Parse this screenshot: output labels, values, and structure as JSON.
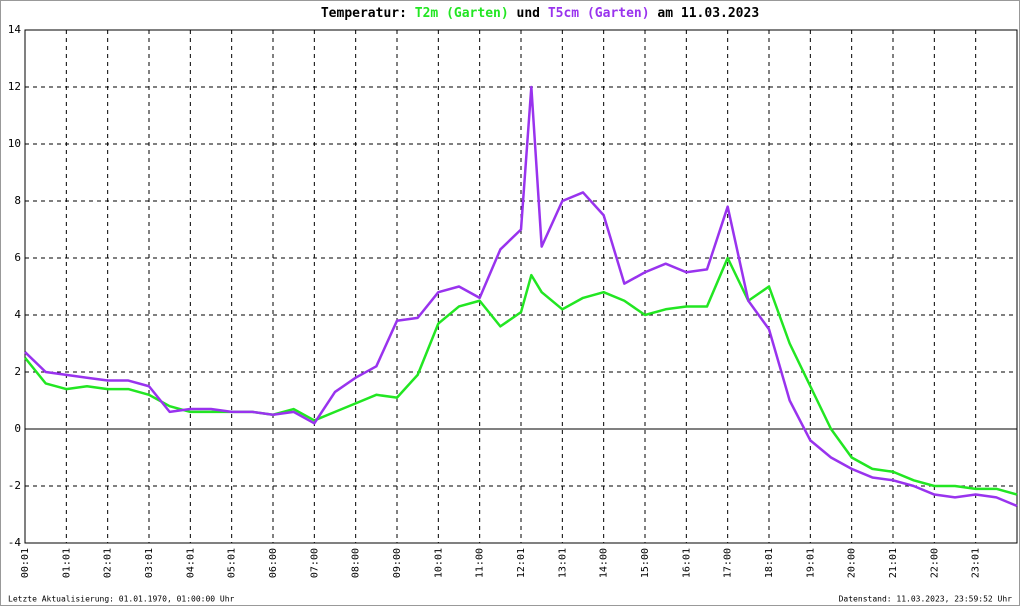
{
  "chart_data": {
    "type": "line",
    "title": {
      "prefix": "Temperatur:",
      "joiner": "und",
      "suffix": "am 11.03.2023"
    },
    "x": [
      0,
      0.5,
      1,
      1.5,
      2,
      2.5,
      3,
      3.5,
      4,
      4.5,
      5,
      5.5,
      6,
      6.5,
      7,
      7.5,
      8,
      8.5,
      9,
      9.5,
      10,
      10.5,
      11,
      11.5,
      12,
      12.25,
      12.5,
      13,
      13.5,
      14,
      14.5,
      15,
      15.5,
      16,
      16.5,
      17,
      17.5,
      18,
      18.5,
      19,
      19.5,
      20,
      20.5,
      21,
      21.5,
      22,
      22.5,
      23,
      23.5,
      24
    ],
    "series": [
      {
        "name": "T2m (Garten)",
        "color": "#22e622",
        "values": [
          2.5,
          1.6,
          1.4,
          1.5,
          1.4,
          1.4,
          1.2,
          0.8,
          0.6,
          0.6,
          0.6,
          0.6,
          0.5,
          0.7,
          0.3,
          0.6,
          0.9,
          1.2,
          1.1,
          1.9,
          3.7,
          4.3,
          4.5,
          3.6,
          4.1,
          5.4,
          4.8,
          4.2,
          4.6,
          4.8,
          4.5,
          4.0,
          4.2,
          4.3,
          4.3,
          6.0,
          4.5,
          5.0,
          3.0,
          1.5,
          0.0,
          -1.0,
          -1.4,
          -1.5,
          -1.8,
          -2.0,
          -2.0,
          -2.1,
          -2.1,
          -2.3
        ]
      },
      {
        "name": "T5cm (Garten)",
        "color": "#9933ee",
        "values": [
          2.7,
          2.0,
          1.9,
          1.8,
          1.7,
          1.7,
          1.5,
          0.6,
          0.7,
          0.7,
          0.6,
          0.6,
          0.5,
          0.6,
          0.2,
          1.3,
          1.8,
          2.2,
          3.8,
          3.9,
          4.8,
          5.0,
          4.6,
          6.3,
          7.0,
          12.0,
          6.4,
          8.0,
          8.3,
          7.5,
          5.1,
          5.5,
          5.8,
          5.5,
          5.6,
          7.8,
          4.5,
          3.5,
          1.0,
          -0.4,
          -1.0,
          -1.4,
          -1.7,
          -1.8,
          -2.0,
          -2.3,
          -2.4,
          -2.3,
          -2.4,
          -2.7
        ]
      }
    ],
    "xlim": [
      0,
      24
    ],
    "xticks": [
      {
        "value": 0,
        "label": "00:01"
      },
      {
        "value": 1,
        "label": "01:01"
      },
      {
        "value": 2,
        "label": "02:01"
      },
      {
        "value": 3,
        "label": "03:01"
      },
      {
        "value": 4,
        "label": "04:01"
      },
      {
        "value": 5,
        "label": "05:01"
      },
      {
        "value": 6,
        "label": "06:00"
      },
      {
        "value": 7,
        "label": "07:00"
      },
      {
        "value": 8,
        "label": "08:00"
      },
      {
        "value": 9,
        "label": "09:00"
      },
      {
        "value": 10,
        "label": "10:01"
      },
      {
        "value": 11,
        "label": "11:00"
      },
      {
        "value": 12,
        "label": "12:01"
      },
      {
        "value": 13,
        "label": "13:01"
      },
      {
        "value": 14,
        "label": "14:00"
      },
      {
        "value": 15,
        "label": "15:00"
      },
      {
        "value": 16,
        "label": "16:01"
      },
      {
        "value": 17,
        "label": "17:00"
      },
      {
        "value": 18,
        "label": "18:01"
      },
      {
        "value": 19,
        "label": "19:01"
      },
      {
        "value": 20,
        "label": "20:00"
      },
      {
        "value": 21,
        "label": "21:01"
      },
      {
        "value": 22,
        "label": "22:00"
      },
      {
        "value": 23,
        "label": "23:01"
      }
    ],
    "ylim": [
      -4,
      14
    ],
    "yticks": [
      -4,
      -2,
      0,
      2,
      4,
      6,
      8,
      10,
      12,
      14
    ],
    "grid": true,
    "footer": {
      "left": "Letzte Aktualisierung: 01.01.1970, 01:00:00 Uhr",
      "right": "Datenstand: 11.03.2023, 23:59:52 Uhr"
    }
  }
}
